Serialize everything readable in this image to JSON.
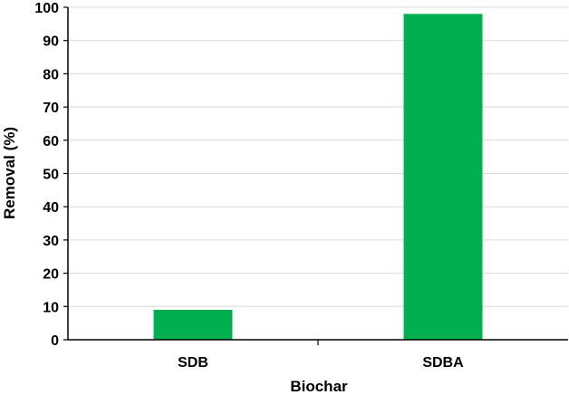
{
  "chart_data": {
    "type": "bar",
    "categories": [
      "SDB",
      "SDBA"
    ],
    "series": [
      {
        "values": [
          9,
          98
        ]
      }
    ],
    "xlabel": "Biochar",
    "ylabel": "Removal (%)",
    "ylim": [
      0,
      100
    ],
    "yticks": [
      0,
      10,
      20,
      30,
      40,
      50,
      60,
      70,
      80,
      90,
      100
    ],
    "grid": true,
    "colors": {
      "bar": "#00b050",
      "grid": "#d9d9d9",
      "axis": "#000000"
    }
  }
}
